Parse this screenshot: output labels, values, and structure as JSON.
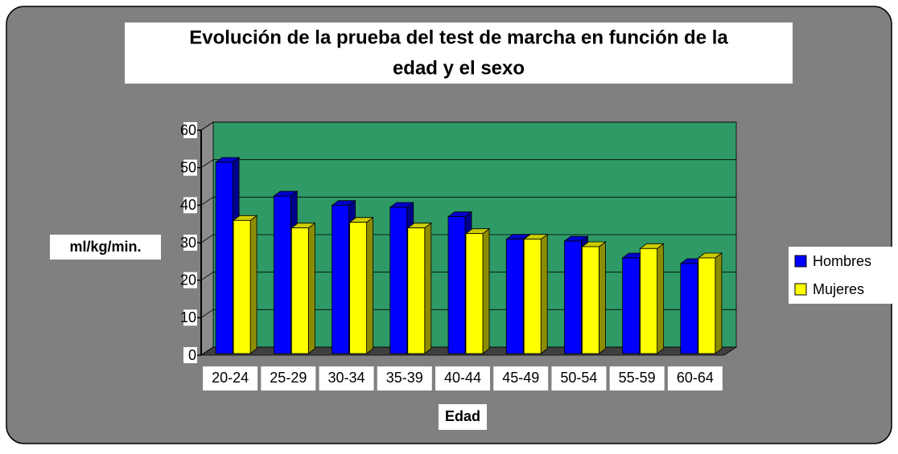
{
  "chart_data": {
    "type": "bar3d",
    "title": [
      "Evolución de la prueba del test de marcha en función de la",
      "edad y el sexo"
    ],
    "y_label": "ml/kg/min.",
    "x_label": "Edad",
    "categories": [
      "20-24",
      "25-29",
      "30-34",
      "35-39",
      "40-44",
      "45-49",
      "50-54",
      "55-59",
      "60-64"
    ],
    "series": [
      {
        "name": "Hombres",
        "color": "#0000ff",
        "values": [
          51,
          42,
          39.5,
          39,
          36.5,
          30.5,
          30,
          25.5,
          24
        ]
      },
      {
        "name": "Mujeres",
        "color": "#ffff00",
        "values": [
          35.5,
          33.5,
          35,
          33.5,
          32,
          30.5,
          28.5,
          28,
          25.5
        ]
      }
    ],
    "ylim": [
      0,
      60
    ],
    "yticks": [
      0,
      10,
      20,
      30,
      40,
      50,
      60
    ],
    "grid": true,
    "legend": "right"
  }
}
